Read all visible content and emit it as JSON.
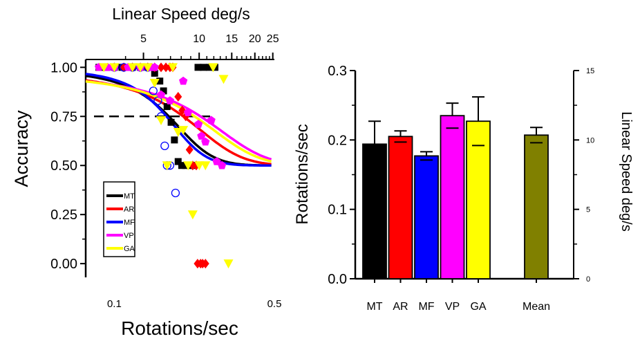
{
  "chart_data": [
    {
      "type": "scatter",
      "xlabel": "Rotations/sec",
      "ylabel": "Accuracy",
      "top_xlabel": "Linear Speed deg/s",
      "x_scale": "log",
      "xlim": [
        0.075,
        0.5
      ],
      "ylim": [
        -0.07,
        1.04
      ],
      "x_ticks": [
        0.1,
        0.5
      ],
      "x_tick_labels": [
        "0.1",
        "0.5"
      ],
      "y_ticks": [
        0,
        0.25,
        0.5,
        0.75,
        1.0
      ],
      "y_tick_labels": [
        "0.00",
        "0.25",
        "0.50",
        "0.75",
        "1.00"
      ],
      "top_x_ticks": [
        5,
        10,
        15,
        20,
        25
      ],
      "top_x_tick_labels": [
        "5",
        "10",
        "15",
        "20",
        "25"
      ],
      "threshold_line": {
        "y": 0.75,
        "x_from": 0.075,
        "x_to": 0.155
      },
      "legend": {
        "position": "lower-left",
        "entries": [
          {
            "label": "MT",
            "color": "#000000"
          },
          {
            "label": "AR",
            "color": "#ff0000"
          },
          {
            "label": "MF",
            "color": "#0000ff"
          },
          {
            "label": "VP",
            "color": "#ff00ff"
          },
          {
            "label": "GA",
            "color": "#ffff00"
          }
        ]
      },
      "series": [
        {
          "name": "MT",
          "color": "#000000",
          "marker": "square",
          "filled": true,
          "threshold": 0.173,
          "slope": 24,
          "x": [
            0.0857,
            0.0913,
            0.1,
            0.108,
            0.12,
            0.13,
            0.14,
            0.15,
            0.158,
            0.164,
            0.17,
            0.177,
            0.183,
            0.19,
            0.197,
            0.205,
            0.213,
            0.222,
            0.232,
            0.245,
            0.26,
            0.275
          ],
          "y": [
            1.0,
            1.0,
            1.0,
            1.0,
            1.0,
            1.0,
            1.0,
            0.97,
            0.93,
            0.88,
            0.8,
            0.72,
            0.63,
            0.52,
            0.5,
            0.5,
            0.5,
            0.5,
            1.0,
            1.0,
            1.0,
            1.0
          ]
        },
        {
          "name": "AR",
          "color": "#ff0000",
          "marker": "diamond",
          "filled": true,
          "threshold": 0.2,
          "slope": 15,
          "x": [
            0.1,
            0.11,
            0.12,
            0.13,
            0.14,
            0.15,
            0.16,
            0.168,
            0.175,
            0.18,
            0.19,
            0.198,
            0.205,
            0.213,
            0.22,
            0.228,
            0.231,
            0.238,
            0.243,
            0.25
          ],
          "y": [
            1.0,
            1.0,
            1.0,
            1.0,
            1.0,
            1.0,
            1.0,
            1.0,
            1.0,
            1.0,
            0.85,
            0.78,
            0.75,
            0.58,
            0.5,
            0.5,
            0.0,
            0.0,
            0.0,
            0.0
          ]
        },
        {
          "name": "MF",
          "color": "#0000ff",
          "marker": "circle",
          "filled": false,
          "threshold": 0.169,
          "slope": 28,
          "x": [
            0.1,
            0.11,
            0.12,
            0.13,
            0.14,
            0.148,
            0.155,
            0.16,
            0.166,
            0.17,
            0.175,
            0.185
          ],
          "y": [
            1.0,
            1.0,
            1.0,
            1.0,
            1.0,
            0.88,
            0.83,
            0.75,
            0.6,
            0.5,
            0.5,
            0.36
          ]
        },
        {
          "name": "VP",
          "color": "#ff00ff",
          "marker": "pentagon",
          "filled": true,
          "threshold": 0.238,
          "slope": 11,
          "x": [
            0.0857,
            0.0935,
            0.1,
            0.115,
            0.13,
            0.145,
            0.15,
            0.16,
            0.175,
            0.2,
            0.21,
            0.233,
            0.24,
            0.25,
            0.265,
            0.28,
            0.295
          ],
          "y": [
            1.0,
            1.0,
            1.0,
            1.0,
            1.0,
            1.0,
            1.0,
            0.86,
            0.83,
            0.93,
            0.77,
            0.71,
            0.65,
            0.62,
            0.73,
            0.52,
            0.5
          ]
        },
        {
          "name": "GA",
          "color": "#ffff00",
          "marker": "triangle-down",
          "filled": true,
          "threshold": 0.224,
          "slope": 12,
          "x": [
            0.09,
            0.1,
            0.12,
            0.13,
            0.14,
            0.15,
            0.16,
            0.17,
            0.18,
            0.19,
            0.2,
            0.21,
            0.22,
            0.235,
            0.25,
            0.27,
            0.3,
            0.315
          ],
          "y": [
            1.0,
            1.0,
            1.0,
            1.0,
            1.0,
            0.92,
            0.73,
            0.5,
            1.0,
            0.67,
            0.68,
            0.5,
            0.25,
            0.5,
            0.5,
            1.0,
            0.94,
            0.0
          ]
        }
      ]
    },
    {
      "type": "bar",
      "ylabel": "Rotations/sec",
      "y2label": "Linear Speed deg/s",
      "ylim": [
        0,
        0.3
      ],
      "y_ticks": [
        0,
        0.1,
        0.2,
        0.3
      ],
      "y_tick_labels": [
        "0.0",
        "0.1",
        "0.2",
        "0.3"
      ],
      "y2lim": [
        0,
        15
      ],
      "y2_ticks": [
        0,
        5,
        10,
        15
      ],
      "y2_tick_labels": [
        "0",
        "5",
        "10",
        "15"
      ],
      "categories": [
        "MT",
        "AR",
        "MF",
        "VP",
        "GA",
        "Mean"
      ],
      "slots": [
        0,
        1,
        2,
        3,
        4,
        6
      ],
      "values": [
        0.194,
        0.205,
        0.177,
        0.235,
        0.227,
        0.207
      ],
      "errors": [
        0.033,
        0.008,
        0.006,
        0.018,
        0.035,
        0.011
      ],
      "colors": [
        "#000000",
        "#ff0000",
        "#0000ff",
        "#ff00ff",
        "#ffff00",
        "#808000"
      ]
    }
  ]
}
